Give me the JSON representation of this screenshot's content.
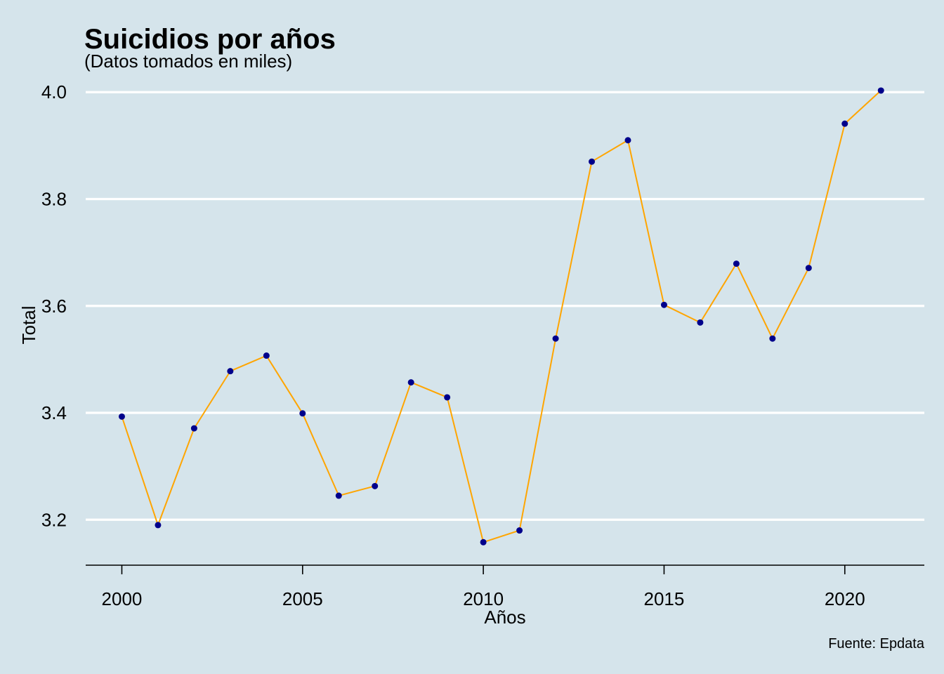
{
  "chart_data": {
    "type": "line",
    "title": "Suicidios por años",
    "subtitle": "(Datos tomados en miles)",
    "xlabel": "Años",
    "ylabel": "Total",
    "caption": "Fuente: Epdata",
    "x": [
      2000,
      2001,
      2002,
      2003,
      2004,
      2005,
      2006,
      2007,
      2008,
      2009,
      2010,
      2011,
      2012,
      2013,
      2014,
      2015,
      2016,
      2017,
      2018,
      2019,
      2020,
      2021
    ],
    "series": [
      {
        "values": [
          3.393,
          3.19,
          3.371,
          3.478,
          3.507,
          3.399,
          3.245,
          3.263,
          3.457,
          3.429,
          3.158,
          3.18,
          3.539,
          3.87,
          3.91,
          3.602,
          3.569,
          3.679,
          3.539,
          3.671,
          3.941,
          4.003
        ]
      }
    ],
    "xlim": [
      1999,
      2022.2
    ],
    "ylim": [
      3.115,
      4.02
    ],
    "xticks": [
      "2000",
      "2005",
      "2010",
      "2015",
      "2020"
    ],
    "yticks": [
      "3.2",
      "3.4",
      "3.6",
      "3.8",
      "4.0"
    ],
    "grid": "horizontal-major",
    "colors": {
      "background": "#d5e4eb",
      "line": "#ffa500",
      "points": "#00008b",
      "grid": "#ffffff"
    }
  }
}
